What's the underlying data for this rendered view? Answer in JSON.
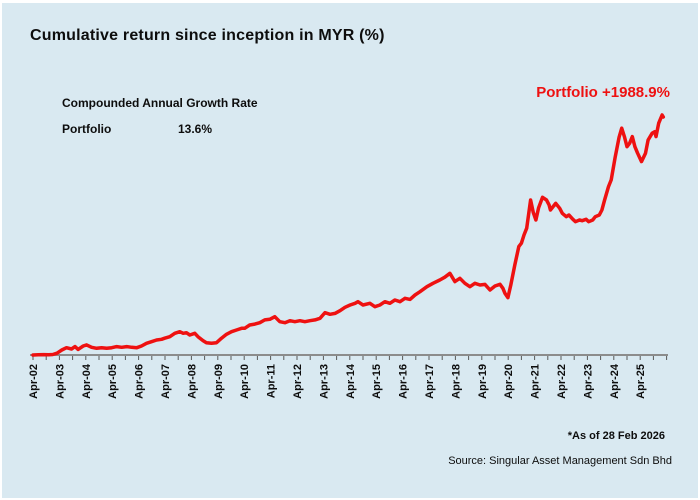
{
  "title": "Cumulative return since inception in MYR (%)",
  "cagr": {
    "heading": "Compounded Annual Growth Rate",
    "series_label": "Portfolio",
    "value": "13.6%"
  },
  "annotation": {
    "label": "Portfolio +1988.9%"
  },
  "footnote": "*As of 28 Feb 2026",
  "source": "Source: Singular Asset Management Sdn Bhd",
  "colors": {
    "background": "#d9e9f1",
    "line": "#ee1111",
    "annotation": "#ee1111",
    "axis": "#8c8c8c",
    "tick": "#595959",
    "text": "#0d0d0d"
  },
  "chart_data": {
    "type": "line",
    "title": "Cumulative return since inception in MYR (%)",
    "series_name": "Portfolio",
    "unit": "%",
    "final_value": 1988.9,
    "as_of": "28 Feb 2026",
    "grid": false,
    "legend_position": "none",
    "ylim": [
      0,
      2100
    ],
    "xlabel": "",
    "ylabel": "",
    "x_tick_labels": [
      "Apr-02",
      "Apr-03",
      "Apr-04",
      "Apr-05",
      "Apr-06",
      "Apr-07",
      "Apr-08",
      "Apr-09",
      "Apr-10",
      "Apr-11",
      "Apr-12",
      "Apr-13",
      "Apr-14",
      "Apr-15",
      "Apr-16",
      "Apr-17",
      "Apr-18",
      "Apr-19",
      "Apr-20",
      "Apr-21",
      "Apr-22",
      "Apr-23",
      "Apr-24",
      "Apr-25"
    ],
    "x_note": "decimal years, Apr-2002 (2002.25) to Feb-2026 (2026.125), minor ticks at half-years",
    "points": [
      [
        2002.25,
        0
      ],
      [
        2002.45,
        2
      ],
      [
        2002.65,
        3
      ],
      [
        2002.85,
        2
      ],
      [
        2003.0,
        4
      ],
      [
        2003.16,
        15
      ],
      [
        2003.34,
        42
      ],
      [
        2003.52,
        61
      ],
      [
        2003.71,
        50
      ],
      [
        2003.84,
        70
      ],
      [
        2003.96,
        47
      ],
      [
        2004.15,
        75
      ],
      [
        2004.28,
        84
      ],
      [
        2004.47,
        64
      ],
      [
        2004.66,
        56
      ],
      [
        2004.85,
        61
      ],
      [
        2005.04,
        56
      ],
      [
        2005.23,
        61
      ],
      [
        2005.42,
        70
      ],
      [
        2005.61,
        64
      ],
      [
        2005.8,
        70
      ],
      [
        2005.99,
        64
      ],
      [
        2006.18,
        61
      ],
      [
        2006.36,
        75
      ],
      [
        2006.55,
        98
      ],
      [
        2006.74,
        111
      ],
      [
        2006.93,
        125
      ],
      [
        2007.12,
        131
      ],
      [
        2007.24,
        140
      ],
      [
        2007.43,
        153
      ],
      [
        2007.62,
        181
      ],
      [
        2007.81,
        195
      ],
      [
        2007.94,
        181
      ],
      [
        2008.06,
        186
      ],
      [
        2008.19,
        167
      ],
      [
        2008.38,
        181
      ],
      [
        2008.5,
        153
      ],
      [
        2008.69,
        120
      ],
      [
        2008.82,
        103
      ],
      [
        2009.01,
        98
      ],
      [
        2009.2,
        103
      ],
      [
        2009.39,
        140
      ],
      [
        2009.58,
        173
      ],
      [
        2009.77,
        195
      ],
      [
        2009.96,
        209
      ],
      [
        2010.15,
        223
      ],
      [
        2010.27,
        223
      ],
      [
        2010.46,
        251
      ],
      [
        2010.65,
        258
      ],
      [
        2010.84,
        270
      ],
      [
        2011.03,
        293
      ],
      [
        2011.22,
        298
      ],
      [
        2011.41,
        320
      ],
      [
        2011.6,
        278
      ],
      [
        2011.79,
        270
      ],
      [
        2011.98,
        287
      ],
      [
        2012.17,
        278
      ],
      [
        2012.36,
        287
      ],
      [
        2012.55,
        278
      ],
      [
        2012.74,
        287
      ],
      [
        2012.93,
        293
      ],
      [
        2013.12,
        307
      ],
      [
        2013.31,
        354
      ],
      [
        2013.5,
        340
      ],
      [
        2013.69,
        348
      ],
      [
        2013.88,
        370
      ],
      [
        2014.07,
        399
      ],
      [
        2014.26,
        418
      ],
      [
        2014.45,
        432
      ],
      [
        2014.56,
        445
      ],
      [
        2014.75,
        418
      ],
      [
        2015.01,
        432
      ],
      [
        2015.2,
        404
      ],
      [
        2015.39,
        418
      ],
      [
        2015.58,
        445
      ],
      [
        2015.77,
        432
      ],
      [
        2015.96,
        460
      ],
      [
        2016.15,
        445
      ],
      [
        2016.34,
        474
      ],
      [
        2016.53,
        465
      ],
      [
        2016.72,
        501
      ],
      [
        2016.91,
        529
      ],
      [
        2017.17,
        571
      ],
      [
        2017.4,
        599
      ],
      [
        2017.66,
        627
      ],
      [
        2017.85,
        650
      ],
      [
        2018.04,
        683
      ],
      [
        2018.23,
        613
      ],
      [
        2018.42,
        641
      ],
      [
        2018.61,
        599
      ],
      [
        2018.8,
        571
      ],
      [
        2018.99,
        599
      ],
      [
        2019.18,
        585
      ],
      [
        2019.37,
        590
      ],
      [
        2019.56,
        543
      ],
      [
        2019.75,
        577
      ],
      [
        2019.94,
        591
      ],
      [
        2020.05,
        557
      ],
      [
        2020.13,
        515
      ],
      [
        2020.24,
        479
      ],
      [
        2020.35,
        585
      ],
      [
        2020.5,
        752
      ],
      [
        2020.65,
        906
      ],
      [
        2020.75,
        934
      ],
      [
        2020.85,
        1003
      ],
      [
        2020.95,
        1060
      ],
      [
        2021.1,
        1295
      ],
      [
        2021.2,
        1190
      ],
      [
        2021.3,
        1128
      ],
      [
        2021.4,
        1230
      ],
      [
        2021.55,
        1318
      ],
      [
        2021.7,
        1295
      ],
      [
        2021.8,
        1254
      ],
      [
        2021.85,
        1212
      ],
      [
        2021.95,
        1240
      ],
      [
        2022.05,
        1268
      ],
      [
        2022.2,
        1226
      ],
      [
        2022.3,
        1184
      ],
      [
        2022.45,
        1156
      ],
      [
        2022.55,
        1170
      ],
      [
        2022.7,
        1134
      ],
      [
        2022.8,
        1114
      ],
      [
        2022.95,
        1128
      ],
      [
        2023.05,
        1122
      ],
      [
        2023.2,
        1134
      ],
      [
        2023.3,
        1114
      ],
      [
        2023.45,
        1128
      ],
      [
        2023.55,
        1156
      ],
      [
        2023.7,
        1170
      ],
      [
        2023.8,
        1212
      ],
      [
        2023.9,
        1295
      ],
      [
        2024.05,
        1407
      ],
      [
        2024.15,
        1463
      ],
      [
        2024.3,
        1650
      ],
      [
        2024.45,
        1820
      ],
      [
        2024.55,
        1895
      ],
      [
        2024.65,
        1825
      ],
      [
        2024.75,
        1741
      ],
      [
        2024.85,
        1769
      ],
      [
        2024.95,
        1825
      ],
      [
        2025.05,
        1741
      ],
      [
        2025.15,
        1686
      ],
      [
        2025.3,
        1616
      ],
      [
        2025.45,
        1686
      ],
      [
        2025.55,
        1797
      ],
      [
        2025.7,
        1853
      ],
      [
        2025.8,
        1866
      ],
      [
        2025.85,
        1825
      ],
      [
        2025.95,
        1937
      ],
      [
        2026.08,
        2006
      ],
      [
        2026.125,
        1988.9
      ]
    ]
  }
}
